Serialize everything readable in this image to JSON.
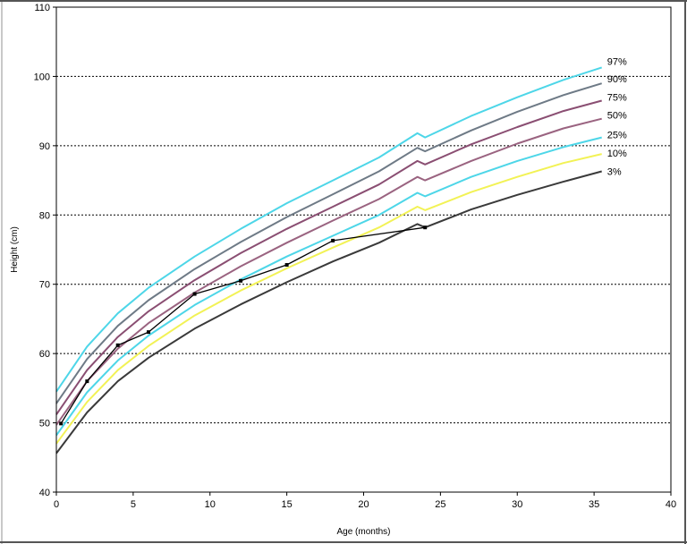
{
  "chart_data": {
    "type": "line",
    "title": "",
    "xlabel": "Age (months)",
    "ylabel": "Height (cm)",
    "xlim": [
      0,
      40
    ],
    "ylim": [
      40,
      110
    ],
    "x_ticks": [
      0,
      5,
      10,
      15,
      20,
      25,
      30,
      35,
      40
    ],
    "y_ticks": [
      40,
      50,
      60,
      70,
      80,
      90,
      100,
      110
    ],
    "grid": {
      "horizontal": "dotted",
      "vertical": "none"
    },
    "legend": "labels at right end of each curve",
    "series": [
      {
        "name": "97%",
        "color": "#4dd6e8",
        "x": [
          0,
          2,
          4,
          6,
          9,
          12,
          15,
          18,
          21,
          23.5,
          24,
          27,
          30,
          33,
          35.5
        ],
        "y": [
          54.5,
          61,
          65.8,
          69.5,
          74,
          78,
          81.7,
          85,
          88.3,
          91.8,
          91.2,
          94.3,
          97,
          99.5,
          101.3
        ]
      },
      {
        "name": "90%",
        "color": "#6e7a86",
        "x": [
          0,
          2,
          4,
          6,
          9,
          12,
          15,
          18,
          21,
          23.5,
          24,
          27,
          30,
          33,
          35.5
        ],
        "y": [
          52.8,
          59.2,
          64,
          67.7,
          72.2,
          76.1,
          79.7,
          83,
          86.3,
          89.7,
          89.2,
          92.2,
          94.9,
          97.3,
          99
        ]
      },
      {
        "name": "75%",
        "color": "#8a4e72",
        "x": [
          0,
          2,
          4,
          6,
          9,
          12,
          15,
          18,
          21,
          23.5,
          24,
          27,
          30,
          33,
          35.5
        ],
        "y": [
          51.2,
          57.6,
          62.4,
          66.1,
          70.6,
          74.5,
          78,
          81.2,
          84.4,
          87.8,
          87.3,
          90.2,
          92.7,
          95,
          96.5
        ]
      },
      {
        "name": "50%",
        "color": "#9a6380",
        "x": [
          0,
          2,
          4,
          6,
          9,
          12,
          15,
          18,
          21,
          23.5,
          24,
          27,
          30,
          33,
          35.5
        ],
        "y": [
          49.7,
          56,
          60.7,
          64.4,
          68.8,
          72.6,
          76,
          79.2,
          82.3,
          85.5,
          85,
          87.8,
          90.3,
          92.5,
          93.9
        ]
      },
      {
        "name": "25%",
        "color": "#4dd6e8",
        "x": [
          0,
          2,
          4,
          6,
          9,
          12,
          15,
          18,
          21,
          23.5,
          24,
          27,
          30,
          33,
          35.5
        ],
        "y": [
          48.2,
          54.4,
          59,
          62.6,
          67,
          70.7,
          74,
          77,
          80,
          83.2,
          82.7,
          85.5,
          87.8,
          89.8,
          91.2
        ]
      },
      {
        "name": "10%",
        "color": "#f2f255",
        "x": [
          0,
          2,
          4,
          6,
          9,
          12,
          15,
          18,
          21,
          23.5,
          24,
          27,
          30,
          33,
          35.5
        ],
        "y": [
          47,
          53,
          57.6,
          61.1,
          65.5,
          69.1,
          72.3,
          75.3,
          78.2,
          81.2,
          80.7,
          83.3,
          85.5,
          87.5,
          88.8
        ]
      },
      {
        "name": "3%",
        "color": "#3a3a3a",
        "x": [
          0,
          2,
          4,
          6,
          9,
          12,
          15,
          18,
          21,
          23.5,
          24,
          27,
          30,
          33,
          35.5
        ],
        "y": [
          45.6,
          51.5,
          56,
          59.4,
          63.6,
          67.1,
          70.3,
          73.3,
          76,
          78.7,
          78.2,
          80.8,
          82.9,
          84.8,
          86.3
        ]
      },
      {
        "name": "",
        "color": "#000000",
        "markers": true,
        "x": [
          0.3,
          2,
          4,
          6,
          9,
          12,
          15,
          18,
          24
        ],
        "y": [
          49.9,
          56,
          61.2,
          63.1,
          68.6,
          70.5,
          72.8,
          76.3,
          78.2
        ]
      }
    ]
  }
}
